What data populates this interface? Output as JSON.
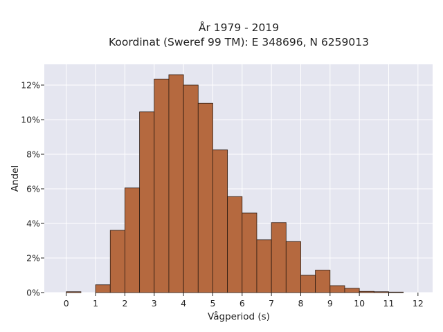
{
  "chart_data": {
    "type": "bar",
    "title_line1": "År 1979 - 2019",
    "title_line2": "Koordinat (Sweref 99 TM): E 348696, N 6259013",
    "xlabel": "Vågperiod (s)",
    "ylabel": "Andel",
    "xlim": [
      -0.75,
      12.5
    ],
    "ylim": [
      0,
      13.2
    ],
    "x_ticks": [
      0,
      1,
      2,
      3,
      4,
      5,
      6,
      7,
      8,
      9,
      10,
      11,
      12
    ],
    "y_ticks": [
      0,
      2,
      4,
      6,
      8,
      10,
      12
    ],
    "y_tick_suffix": "%",
    "bin_width": 0.5,
    "bins": [
      {
        "start": 0.0,
        "value": 0.05
      },
      {
        "start": 0.5,
        "value": 0.0
      },
      {
        "start": 1.0,
        "value": 0.45
      },
      {
        "start": 1.5,
        "value": 3.6
      },
      {
        "start": 2.0,
        "value": 6.05
      },
      {
        "start": 2.5,
        "value": 10.45
      },
      {
        "start": 3.0,
        "value": 12.35
      },
      {
        "start": 3.5,
        "value": 12.6
      },
      {
        "start": 4.0,
        "value": 12.0
      },
      {
        "start": 4.5,
        "value": 10.95
      },
      {
        "start": 5.0,
        "value": 8.25
      },
      {
        "start": 5.5,
        "value": 5.55
      },
      {
        "start": 6.0,
        "value": 4.6
      },
      {
        "start": 6.5,
        "value": 3.05
      },
      {
        "start": 7.0,
        "value": 4.05
      },
      {
        "start": 7.5,
        "value": 2.95
      },
      {
        "start": 8.0,
        "value": 1.0
      },
      {
        "start": 8.5,
        "value": 1.3
      },
      {
        "start": 9.0,
        "value": 0.4
      },
      {
        "start": 9.5,
        "value": 0.25
      },
      {
        "start": 10.0,
        "value": 0.07
      },
      {
        "start": 10.5,
        "value": 0.05
      },
      {
        "start": 11.0,
        "value": 0.03
      }
    ],
    "grid": true,
    "colors": {
      "bar": "#b5693f",
      "background": "#e5e6f0",
      "gridline": "#ffffff"
    }
  }
}
